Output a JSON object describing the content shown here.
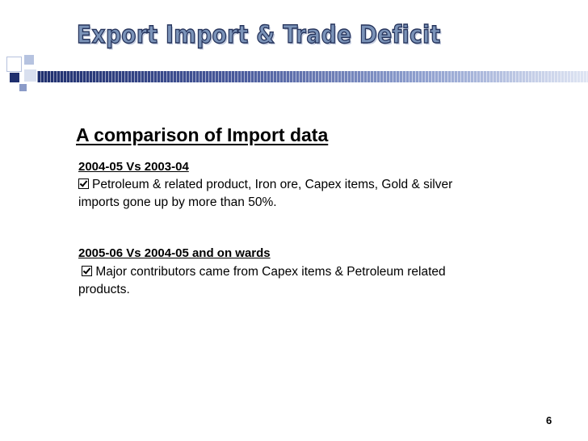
{
  "slide": {
    "title": "Export Import & Trade Deficit",
    "heading": "A comparison of Import data",
    "sections": [
      {
        "subheading": "2004-05 Vs 2003-04",
        "bullet": "Petroleum & related product, Iron ore, Capex items, Gold & silver imports gone up by more than 50%."
      },
      {
        "subheading": "2005-06 Vs 2004-05 and on wards",
        "bullet": "Major contributors came from Capex items & Petroleum related products."
      }
    ],
    "page_number": "6"
  },
  "colors": {
    "title_fill": "#7b93b8",
    "title_outline": "#26345c",
    "bar_dark": "#1f2f6e",
    "bar_light": "#dfe5f3"
  },
  "icons": [
    "checkbox-bullet-icon"
  ]
}
